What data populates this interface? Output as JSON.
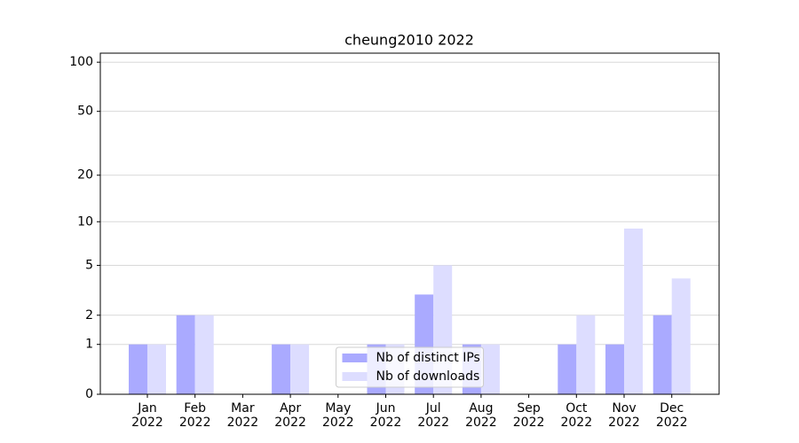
{
  "chart_data": {
    "type": "bar",
    "title": "cheung2010 2022",
    "categories": [
      "Jan\n2022",
      "Feb\n2022",
      "Mar\n2022",
      "Apr\n2022",
      "May\n2022",
      "Jun\n2022",
      "Jul\n2022",
      "Aug\n2022",
      "Sep\n2022",
      "Oct\n2022",
      "Nov\n2022",
      "Dec\n2022"
    ],
    "series": [
      {
        "name": "Nb of distinct IPs",
        "color": "#aaaaff",
        "values": [
          1,
          2,
          0,
          1,
          0,
          1,
          3,
          1,
          0,
          1,
          1,
          2
        ]
      },
      {
        "name": "Nb of downloads",
        "color": "#ddddff",
        "values": [
          1,
          2,
          0,
          1,
          0,
          1,
          5,
          1,
          0,
          2,
          9,
          4
        ]
      }
    ],
    "yscale": "log1p",
    "ylim": [
      0,
      113.5
    ],
    "yticks": [
      0,
      1,
      2,
      5,
      10,
      20,
      50,
      100
    ],
    "grid": true,
    "legend": "lower center"
  }
}
